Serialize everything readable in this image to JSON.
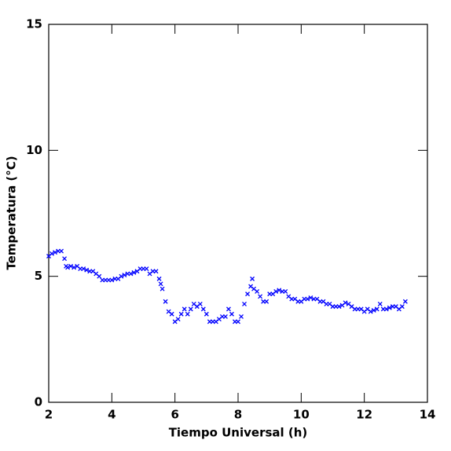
{
  "chart_data": {
    "type": "scatter",
    "xlabel": "Tiempo Universal (h)",
    "ylabel": "Temperatura (°C)",
    "xlim": [
      2,
      14
    ],
    "ylim": [
      0,
      15
    ],
    "xticks": [
      2,
      4,
      6,
      8,
      10,
      12,
      14
    ],
    "yticks": [
      0,
      5,
      10,
      15
    ],
    "series": [
      {
        "name": "Temperatura",
        "color": "#0000ff",
        "x": [
          2.0,
          2.1,
          2.2,
          2.3,
          2.4,
          2.5,
          2.55,
          2.6,
          2.7,
          2.8,
          2.9,
          3.0,
          3.1,
          3.2,
          3.3,
          3.4,
          3.5,
          3.6,
          3.7,
          3.8,
          3.9,
          4.0,
          4.1,
          4.2,
          4.3,
          4.4,
          4.5,
          4.6,
          4.7,
          4.8,
          4.9,
          5.0,
          5.1,
          5.2,
          5.3,
          5.4,
          5.5,
          5.55,
          5.6,
          5.7,
          5.8,
          5.9,
          6.0,
          6.1,
          6.2,
          6.3,
          6.4,
          6.5,
          6.6,
          6.7,
          6.8,
          6.9,
          7.0,
          7.1,
          7.2,
          7.3,
          7.4,
          7.5,
          7.6,
          7.7,
          7.8,
          7.9,
          8.0,
          8.1,
          8.2,
          8.3,
          8.4,
          8.45,
          8.5,
          8.6,
          8.7,
          8.8,
          8.9,
          9.0,
          9.1,
          9.2,
          9.3,
          9.4,
          9.5,
          9.6,
          9.7,
          9.8,
          9.9,
          10.0,
          10.1,
          10.2,
          10.3,
          10.4,
          10.5,
          10.6,
          10.7,
          10.8,
          10.9,
          11.0,
          11.1,
          11.2,
          11.3,
          11.4,
          11.5,
          11.6,
          11.7,
          11.8,
          11.9,
          12.0,
          12.1,
          12.2,
          12.3,
          12.4,
          12.5,
          12.6,
          12.7,
          12.8,
          12.9,
          13.0,
          13.1,
          13.2,
          13.3
        ],
        "values": [
          5.8,
          5.9,
          5.95,
          6.0,
          6.0,
          5.7,
          5.4,
          5.35,
          5.4,
          5.35,
          5.4,
          5.3,
          5.3,
          5.25,
          5.2,
          5.2,
          5.1,
          5.0,
          4.85,
          4.85,
          4.85,
          4.85,
          4.9,
          4.9,
          5.0,
          5.05,
          5.1,
          5.1,
          5.15,
          5.2,
          5.3,
          5.3,
          5.3,
          5.1,
          5.2,
          5.2,
          4.9,
          4.7,
          4.5,
          4.0,
          3.6,
          3.5,
          3.2,
          3.3,
          3.5,
          3.7,
          3.5,
          3.7,
          3.9,
          3.8,
          3.9,
          3.7,
          3.5,
          3.2,
          3.2,
          3.2,
          3.3,
          3.4,
          3.4,
          3.7,
          3.5,
          3.2,
          3.2,
          3.4,
          3.9,
          4.3,
          4.6,
          4.9,
          4.5,
          4.4,
          4.2,
          4.0,
          4.0,
          4.3,
          4.3,
          4.4,
          4.45,
          4.4,
          4.4,
          4.2,
          4.1,
          4.1,
          4.0,
          4.0,
          4.1,
          4.1,
          4.15,
          4.1,
          4.1,
          4.0,
          4.0,
          3.9,
          3.9,
          3.8,
          3.8,
          3.8,
          3.85,
          3.95,
          3.9,
          3.8,
          3.7,
          3.7,
          3.7,
          3.6,
          3.7,
          3.6,
          3.65,
          3.7,
          3.9,
          3.7,
          3.7,
          3.75,
          3.8,
          3.8,
          3.7,
          3.8,
          4.0
        ]
      }
    ]
  }
}
